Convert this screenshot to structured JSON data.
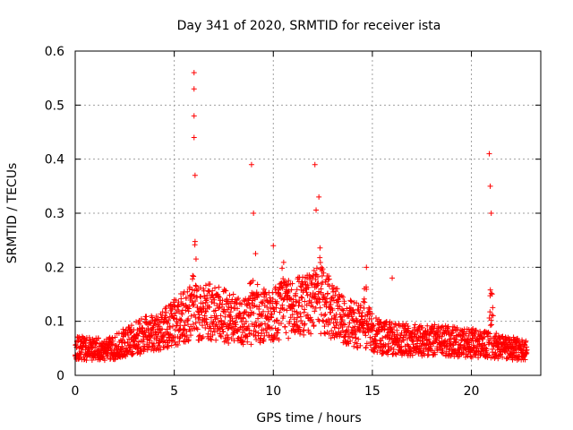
{
  "chart_data": {
    "type": "scatter",
    "title": "Day 341 of 2020, SRMTID for receiver ista",
    "xlabel": "GPS time / hours",
    "ylabel": "SRMTID / TECUs",
    "xlim": [
      0,
      23.5
    ],
    "ylim": [
      0,
      0.6
    ],
    "xticks": [
      0,
      5,
      10,
      15,
      20
    ],
    "yticks": [
      0,
      0.1,
      0.2,
      0.3,
      0.4,
      0.5,
      0.6
    ],
    "xtick_labels": [
      "0",
      "5",
      "10",
      "15",
      "20"
    ],
    "ytick_labels": [
      "0",
      "0.1",
      "0.2",
      "0.3",
      "0.4",
      "0.5",
      "0.6"
    ],
    "grid": true,
    "marker": "+",
    "color": "#ff0000",
    "series": [
      {
        "name": "SRMTID",
        "baseline": [
          [
            0.0,
            0.05
          ],
          [
            1.0,
            0.05
          ],
          [
            1.5,
            0.045
          ],
          [
            2.5,
            0.06
          ],
          [
            3.5,
            0.075
          ],
          [
            4.5,
            0.085
          ],
          [
            5.5,
            0.11
          ],
          [
            6.5,
            0.12
          ],
          [
            7.5,
            0.11
          ],
          [
            8.5,
            0.1
          ],
          [
            9.5,
            0.11
          ],
          [
            10.5,
            0.12
          ],
          [
            11.5,
            0.13
          ],
          [
            12.5,
            0.14
          ],
          [
            13.5,
            0.1
          ],
          [
            14.5,
            0.09
          ],
          [
            15.5,
            0.07
          ],
          [
            17.0,
            0.065
          ],
          [
            18.5,
            0.065
          ],
          [
            20.0,
            0.06
          ],
          [
            21.0,
            0.055
          ],
          [
            22.8,
            0.045
          ]
        ],
        "peaks": [
          {
            "x": 6.0,
            "y": 0.56
          },
          {
            "x": 6.0,
            "y": 0.53
          },
          {
            "x": 6.0,
            "y": 0.48
          },
          {
            "x": 6.0,
            "y": 0.44
          },
          {
            "x": 6.05,
            "y": 0.37
          },
          {
            "x": 8.9,
            "y": 0.39
          },
          {
            "x": 9.0,
            "y": 0.3
          },
          {
            "x": 10.0,
            "y": 0.24
          },
          {
            "x": 12.1,
            "y": 0.39
          },
          {
            "x": 12.3,
            "y": 0.33
          },
          {
            "x": 20.9,
            "y": 0.41
          },
          {
            "x": 20.95,
            "y": 0.35
          },
          {
            "x": 21.0,
            "y": 0.3
          },
          {
            "x": 16.0,
            "y": 0.18
          },
          {
            "x": 14.7,
            "y": 0.2
          }
        ],
        "burst_windows": [
          {
            "center": 6.0,
            "width": 0.35,
            "max": 0.38
          },
          {
            "center": 9.0,
            "width": 0.6,
            "max": 0.3
          },
          {
            "center": 10.5,
            "width": 0.8,
            "max": 0.22
          },
          {
            "center": 12.2,
            "width": 0.8,
            "max": 0.33
          },
          {
            "center": 14.7,
            "width": 0.6,
            "max": 0.2
          },
          {
            "center": 21.0,
            "width": 0.25,
            "max": 0.3
          }
        ],
        "x_range": [
          0,
          22.8
        ],
        "n_points": 2300
      }
    ]
  }
}
